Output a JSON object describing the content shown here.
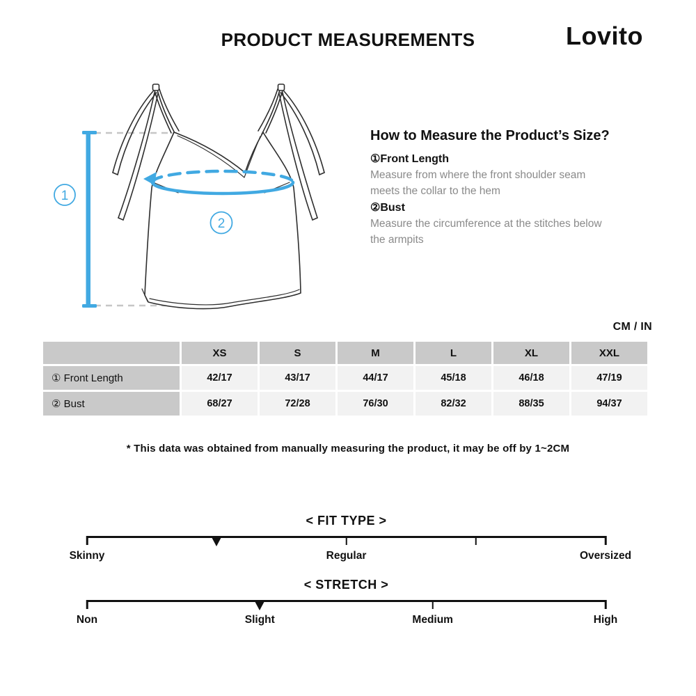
{
  "header": {
    "title": "PRODUCT MEASUREMENTS",
    "brand": "Lovito"
  },
  "diagram": {
    "marker1": "1",
    "marker2": "2",
    "accent_color": "#41a9e2"
  },
  "how_to": {
    "title": "How to Measure the Product’s Size?",
    "items": [
      {
        "num": "①",
        "name": "Front Length",
        "desc": "Measure from where the front shoulder seam meets the collar to the hem"
      },
      {
        "num": "②",
        "name": "Bust",
        "desc": "Measure the circumference at the stitches below the armpits"
      }
    ]
  },
  "size_table": {
    "unit_label": "CM / IN",
    "columns": [
      "XS",
      "S",
      "M",
      "L",
      "XL",
      "XXL"
    ],
    "rows": [
      {
        "num": "①",
        "label": "Front Length",
        "values": [
          "42/17",
          "43/17",
          "44/17",
          "45/18",
          "46/18",
          "47/19"
        ]
      },
      {
        "num": "②",
        "label": "Bust",
        "values": [
          "68/27",
          "72/28",
          "76/30",
          "82/32",
          "88/35",
          "94/37"
        ]
      }
    ]
  },
  "disclaimer": "* This data was obtained from manually measuring the product, it may be off by 1~2CM",
  "scales": [
    {
      "title": "< FIT TYPE >",
      "ticks": [
        0,
        0.5,
        0.75,
        1
      ],
      "marker": 0.25,
      "labels": [
        {
          "text": "Skinny",
          "pos": 0
        },
        {
          "text": "Regular",
          "pos": 0.5
        },
        {
          "text": "Oversized",
          "pos": 1
        }
      ]
    },
    {
      "title": "< STRETCH >",
      "ticks": [
        0,
        0.6667,
        1
      ],
      "marker": 0.3333,
      "labels": [
        {
          "text": "Non",
          "pos": 0
        },
        {
          "text": "Slight",
          "pos": 0.3333
        },
        {
          "text": "Medium",
          "pos": 0.6667
        },
        {
          "text": "High",
          "pos": 1
        }
      ]
    }
  ]
}
